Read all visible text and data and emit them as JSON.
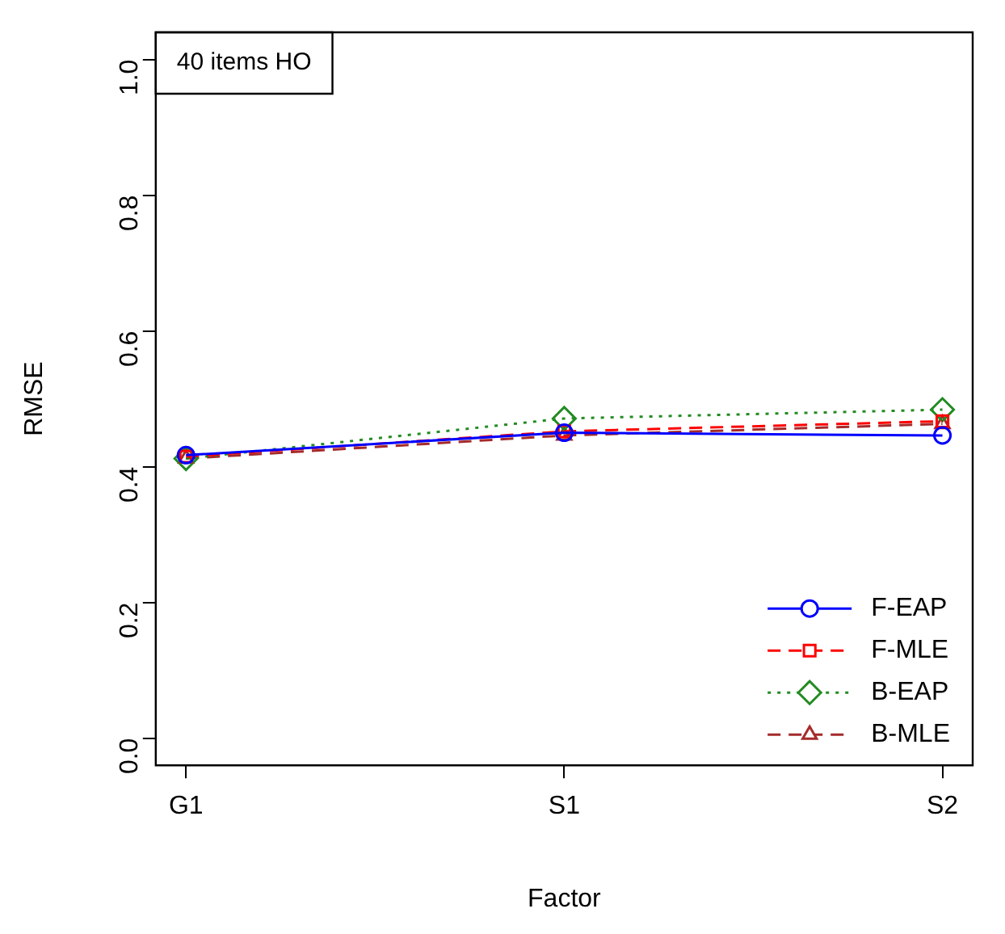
{
  "chart_data": {
    "type": "line",
    "xlabel": "Factor",
    "ylabel": "RMSE",
    "annotations": [
      "40 items HO"
    ],
    "categories": [
      "G1",
      "S1",
      "S2"
    ],
    "series": [
      {
        "name": "F-EAP",
        "color": "#0000ff",
        "values": [
          0.417,
          0.45,
          0.446
        ],
        "marker": "circle",
        "line_style": "solid"
      },
      {
        "name": "F-MLE",
        "color": "#ff0000",
        "values": [
          0.415,
          0.452,
          0.467
        ],
        "marker": "square",
        "line_style": "dashed"
      },
      {
        "name": "B-EAP",
        "color": "#228b22",
        "values": [
          0.412,
          0.471,
          0.484
        ],
        "marker": "diamond",
        "line_style": "dotted"
      },
      {
        "name": "B-MLE",
        "color": "#a52a2a",
        "values": [
          0.412,
          0.446,
          0.463
        ],
        "marker": "triangle",
        "line_style": "dashed"
      }
    ],
    "ylim": [
      -0.04,
      1.04
    ],
    "yticks": [
      {
        "value": 0,
        "label": "0.0"
      },
      {
        "value": 0.2,
        "label": "0.2"
      },
      {
        "value": 0.4,
        "label": "0.4"
      },
      {
        "value": 0.6,
        "label": "0.6"
      },
      {
        "value": 0.8,
        "label": "0.8"
      },
      {
        "value": 1,
        "label": "1.0"
      }
    ],
    "grid": false,
    "legend": "bottom right"
  }
}
